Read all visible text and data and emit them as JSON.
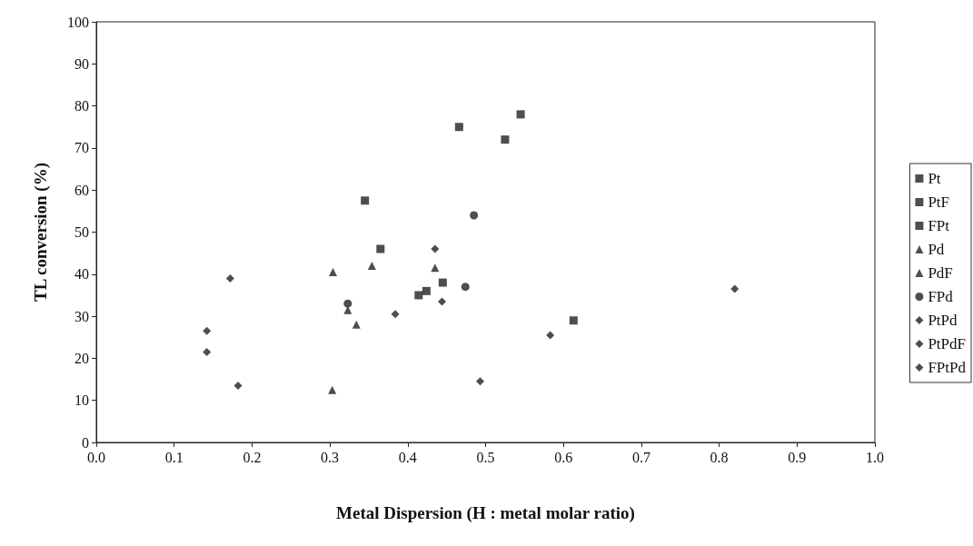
{
  "chart_data": {
    "type": "scatter",
    "xlabel": "Metal Dispersion (H : metal molar ratio)",
    "ylabel": "TL conversion (%)",
    "xlim": [
      0,
      1
    ],
    "xticks": [
      {
        "value": 0,
        "label": "0.0"
      },
      0.1,
      0.2,
      0.3,
      0.4,
      0.5,
      0.6,
      0.7,
      0.8,
      0.9,
      {
        "value": 1,
        "label": "1.0"
      }
    ],
    "ylim": [
      0,
      100
    ],
    "yticks": [
      0,
      10,
      20,
      30,
      40,
      50,
      60,
      70,
      80,
      90,
      100
    ],
    "grid": false,
    "legend": "right",
    "series": [
      {
        "name": "Pt",
        "color": "#222222",
        "marker": "square",
        "x": [
          0.466,
          0.525,
          0.545
        ],
        "values": [
          75,
          72,
          78
        ]
      },
      {
        "name": "PtF",
        "color": "#222222",
        "marker": "square",
        "x": [
          0.424,
          0.445,
          0.613
        ],
        "values": [
          36,
          38,
          29
        ]
      },
      {
        "name": "FPt",
        "color": "#222222",
        "marker": "square",
        "x": [
          0.345,
          0.365,
          0.414
        ],
        "values": [
          57.5,
          46,
          35
        ]
      },
      {
        "name": "Pd",
        "color": "#222222",
        "marker": "triangle",
        "x": [
          0.304,
          0.334,
          0.435
        ],
        "values": [
          40.5,
          28,
          41.5
        ]
      },
      {
        "name": "PdF",
        "color": "#222222",
        "marker": "triangle",
        "x": [
          0.303,
          0.323,
          0.354
        ],
        "values": [
          12.5,
          31.5,
          42
        ]
      },
      {
        "name": "FPd",
        "color": "#222222",
        "marker": "circle",
        "x": [
          0.323,
          0.474,
          0.485
        ],
        "values": [
          33,
          37,
          54
        ]
      },
      {
        "name": "PtPd",
        "color": "#222222",
        "marker": "diamond",
        "x": [
          0.172,
          0.444,
          0.493,
          0.583
        ],
        "values": [
          39,
          33.5,
          14.5,
          25.5
        ]
      },
      {
        "name": "PtPdF",
        "color": "#222222",
        "marker": "diamond",
        "x": [
          0.142,
          0.142,
          0.182
        ],
        "values": [
          26.5,
          21.5,
          13.5
        ]
      },
      {
        "name": "FPtPd",
        "color": "#222222",
        "marker": "diamond",
        "x": [
          0.384,
          0.435,
          0.82
        ],
        "values": [
          30.5,
          46,
          36.5
        ]
      }
    ]
  }
}
